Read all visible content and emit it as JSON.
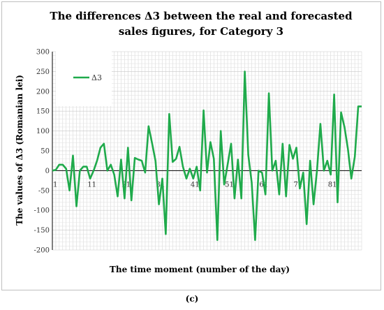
{
  "chart_data": {
    "type": "line",
    "title_line1": "The differences Δ3 between the real and forecasted",
    "title_line2": "sales figures, for Category 3",
    "xlabel": "The time moment (number of the day)",
    "ylabel": "The values of Δ3 (Romanian lei)",
    "ylim": [
      -200,
      300
    ],
    "yticks": [
      -200,
      -150,
      -100,
      -50,
      0,
      50,
      100,
      150,
      200,
      250,
      300
    ],
    "xticks": [
      1,
      11,
      21,
      31,
      41,
      51,
      61,
      71,
      81
    ],
    "xlim": [
      1,
      91
    ],
    "grid": true,
    "legend_position": "top-left",
    "series": [
      {
        "name": "Δ3",
        "color": "#1faa4b",
        "x": [
          1,
          2,
          3,
          4,
          5,
          6,
          7,
          8,
          9,
          10,
          11,
          12,
          13,
          14,
          15,
          16,
          17,
          18,
          19,
          20,
          21,
          22,
          23,
          24,
          25,
          26,
          27,
          28,
          29,
          30,
          31,
          32,
          33,
          34,
          35,
          36,
          37,
          38,
          39,
          40,
          41,
          42,
          43,
          44,
          45,
          46,
          47,
          48,
          49,
          50,
          51,
          52,
          53,
          54,
          55,
          56,
          57,
          58,
          59,
          60,
          61,
          62,
          63,
          64,
          65,
          66,
          67,
          68,
          69,
          70,
          71,
          72,
          73,
          74,
          75,
          76,
          77,
          78,
          79,
          80,
          81,
          82,
          83,
          84,
          85,
          86,
          87,
          88,
          89,
          90,
          91
        ],
        "values": [
          0,
          2,
          15,
          15,
          5,
          -50,
          38,
          -90,
          0,
          10,
          10,
          -20,
          0,
          25,
          58,
          68,
          0,
          15,
          -10,
          -65,
          28,
          -70,
          58,
          -75,
          32,
          28,
          25,
          -5,
          112,
          70,
          25,
          -85,
          -20,
          -160,
          143,
          22,
          30,
          60,
          10,
          -20,
          5,
          -20,
          10,
          -50,
          152,
          -5,
          72,
          30,
          -175,
          100,
          -35,
          15,
          68,
          -70,
          28,
          -70,
          250,
          40,
          -30,
          -175,
          0,
          -5,
          -60,
          195,
          0,
          25,
          -60,
          68,
          -65,
          65,
          30,
          58,
          -45,
          -5,
          -135,
          25,
          -85,
          0,
          118,
          0,
          25,
          -10,
          192,
          -80,
          147,
          110,
          55,
          -20,
          35,
          162,
          162
        ]
      }
    ]
  },
  "caption": "(c)"
}
